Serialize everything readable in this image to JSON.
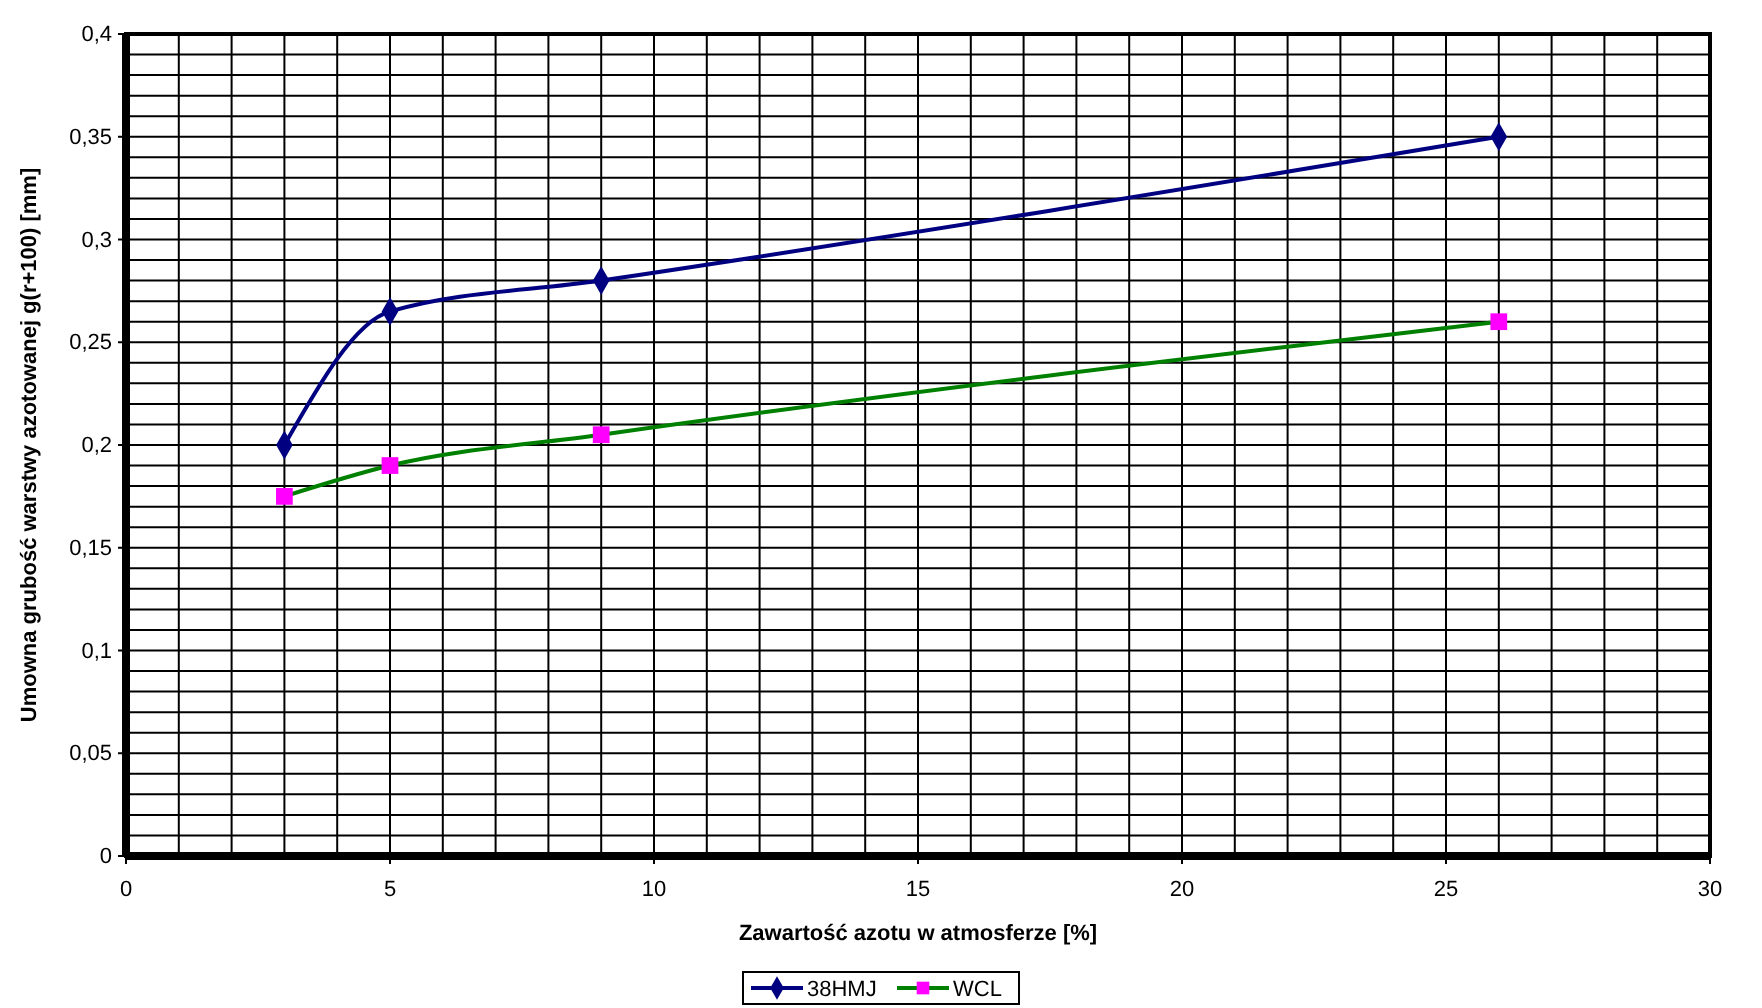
{
  "chart_data": {
    "type": "line",
    "xlabel": "Zawartość azotu w atmosferze   [%]",
    "ylabel": "Umowna grubość warstwy azotowanej g(r+100)   [mm]",
    "xlim": [
      0,
      30
    ],
    "xticks": [
      0,
      {
        "value": 1,
        "label": null
      },
      {
        "value": 2,
        "label": null
      },
      {
        "value": 3,
        "label": null
      },
      {
        "value": 4,
        "label": null
      },
      5,
      {
        "value": 6,
        "label": null
      },
      {
        "value": 7,
        "label": null
      },
      {
        "value": 8,
        "label": null
      },
      {
        "value": 9,
        "label": null
      },
      10,
      {
        "value": 11,
        "label": null
      },
      {
        "value": 12,
        "label": null
      },
      {
        "value": 13,
        "label": null
      },
      {
        "value": 14,
        "label": null
      },
      15,
      {
        "value": 16,
        "label": null
      },
      {
        "value": 17,
        "label": null
      },
      {
        "value": 18,
        "label": null
      },
      {
        "value": 19,
        "label": null
      },
      20,
      {
        "value": 21,
        "label": null
      },
      {
        "value": 22,
        "label": null
      },
      {
        "value": 23,
        "label": null
      },
      {
        "value": 24,
        "label": null
      },
      25,
      {
        "value": 26,
        "label": null
      },
      {
        "value": 27,
        "label": null
      },
      {
        "value": 28,
        "label": null
      },
      {
        "value": 29,
        "label": null
      },
      30
    ],
    "ylim": [
      0,
      0.4
    ],
    "yticks": [
      0,
      {
        "value": 0.01,
        "label": null
      },
      {
        "value": 0.02,
        "label": null
      },
      {
        "value": 0.03,
        "label": null
      },
      {
        "value": 0.04,
        "label": null
      },
      {
        "value": 0.05,
        "label": "0,05"
      },
      {
        "value": 0.06,
        "label": null
      },
      {
        "value": 0.07,
        "label": null
      },
      {
        "value": 0.08,
        "label": null
      },
      {
        "value": 0.09,
        "label": null
      },
      {
        "value": 0.1,
        "label": "0,1"
      },
      {
        "value": 0.11,
        "label": null
      },
      {
        "value": 0.12,
        "label": null
      },
      {
        "value": 0.13,
        "label": null
      },
      {
        "value": 0.14,
        "label": null
      },
      {
        "value": 0.15,
        "label": "0,15"
      },
      {
        "value": 0.16,
        "label": null
      },
      {
        "value": 0.17,
        "label": null
      },
      {
        "value": 0.18,
        "label": null
      },
      {
        "value": 0.19,
        "label": null
      },
      {
        "value": 0.2,
        "label": "0,2"
      },
      {
        "value": 0.21,
        "label": null
      },
      {
        "value": 0.22,
        "label": null
      },
      {
        "value": 0.23,
        "label": null
      },
      {
        "value": 0.24,
        "label": null
      },
      {
        "value": 0.25,
        "label": "0,25"
      },
      {
        "value": 0.26,
        "label": null
      },
      {
        "value": 0.27,
        "label": null
      },
      {
        "value": 0.28,
        "label": null
      },
      {
        "value": 0.29,
        "label": null
      },
      {
        "value": 0.3,
        "label": "0,3"
      },
      {
        "value": 0.31,
        "label": null
      },
      {
        "value": 0.32,
        "label": null
      },
      {
        "value": 0.33,
        "label": null
      },
      {
        "value": 0.34,
        "label": null
      },
      {
        "value": 0.35,
        "label": "0,35"
      },
      {
        "value": 0.36,
        "label": null
      },
      {
        "value": 0.37,
        "label": null
      },
      {
        "value": 0.38,
        "label": null
      },
      {
        "value": 0.39,
        "label": null
      },
      {
        "value": 0.4,
        "label": "0,4"
      }
    ],
    "grid": true,
    "legend": "bottom",
    "x": [
      3,
      5,
      9,
      26
    ],
    "series": [
      {
        "name": "38HMJ",
        "color": "#000080",
        "marker": "diamond",
        "values": [
          0.2,
          0.265,
          0.28,
          0.35
        ]
      },
      {
        "name": "WCL",
        "color": "#008000",
        "colors": [
          "#ff00ff",
          "#ff00ff",
          "#ff00ff",
          "#ff00ff"
        ],
        "marker": "square",
        "values": [
          0.175,
          0.19,
          0.205,
          0.26
        ]
      }
    ]
  }
}
